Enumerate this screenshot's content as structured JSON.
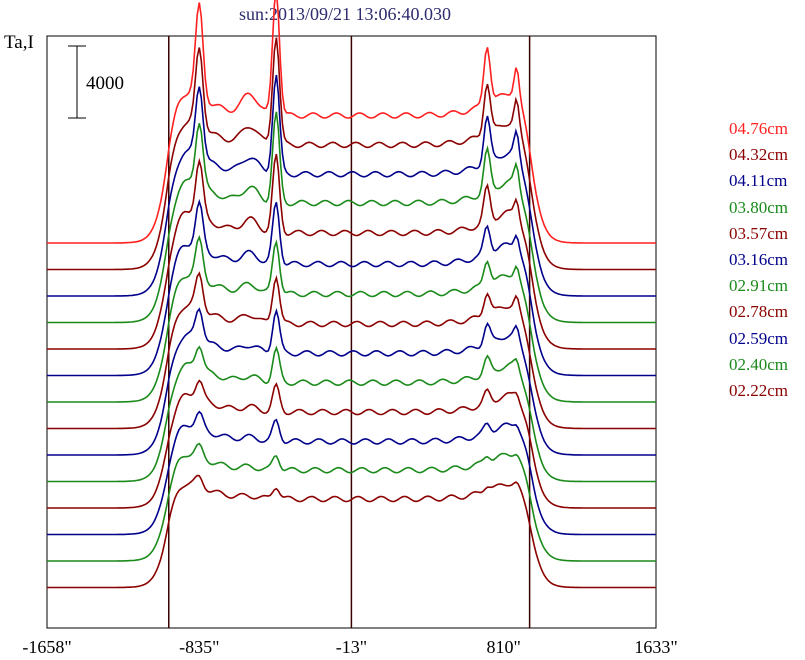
{
  "title": "sun:2013/09/21 13:06:40.030",
  "ylabel": "Ta,I",
  "scale_bar_label": "4000",
  "colors": {
    "red": "#ff2020",
    "maroon": "#8b0000",
    "navy": "#00008b",
    "green": "#1a8a1a",
    "axis": "#000000",
    "marker": "#3a0000"
  },
  "chart_data": {
    "type": "line",
    "title": "sun:2013/09/21 13:06:40.030",
    "ylabel": "Ta,I",
    "xlabel": "",
    "xlim": [
      -1658,
      1633
    ],
    "x_tick_labels": [
      "-1658\"",
      "-835\"",
      "-13\"",
      "810\"",
      "1633\""
    ],
    "x_ticks": [
      -1658,
      -835,
      -13,
      810,
      1633
    ],
    "vertical_markers": [
      -1000,
      -13,
      950
    ],
    "scale_bar": 4000,
    "grid": false,
    "legend_placement": "right",
    "series": [
      {
        "name": "04.76cm",
        "color": "#ff2020",
        "baseline_offset": 0,
        "peak_scale": 1.0,
        "rim_scale": 1.0
      },
      {
        "name": "04.32cm",
        "color": "#8b0000",
        "baseline_offset": 1,
        "peak_scale": 0.86,
        "rim_scale": 0.95
      },
      {
        "name": "04.11cm",
        "color": "#00008b",
        "baseline_offset": 2,
        "peak_scale": 0.78,
        "rim_scale": 0.9
      },
      {
        "name": "03.80cm",
        "color": "#1a8a1a",
        "baseline_offset": 3,
        "peak_scale": 0.7,
        "rim_scale": 0.86
      },
      {
        "name": "03.57cm",
        "color": "#8b0000",
        "baseline_offset": 4,
        "peak_scale": 0.6,
        "rim_scale": 0.8
      },
      {
        "name": "03.16cm",
        "color": "#00008b",
        "baseline_offset": 5,
        "peak_scale": 0.48,
        "rim_scale": 0.72
      },
      {
        "name": "02.91cm",
        "color": "#1a8a1a",
        "baseline_offset": 6,
        "peak_scale": 0.42,
        "rim_scale": 0.66
      },
      {
        "name": "02.78cm",
        "color": "#8b0000",
        "baseline_offset": 7,
        "peak_scale": 0.38,
        "rim_scale": 0.6
      },
      {
        "name": "02.59cm",
        "color": "#00008b",
        "baseline_offset": 8,
        "peak_scale": 0.34,
        "rim_scale": 0.55
      },
      {
        "name": "02.40cm",
        "color": "#1a8a1a",
        "baseline_offset": 9,
        "peak_scale": 0.26,
        "rim_scale": 0.5
      },
      {
        "name": "02.22cm",
        "color": "#8b0000",
        "baseline_offset": 10,
        "peak_scale": 0.2,
        "rim_scale": 0.45
      },
      {
        "name": "",
        "color": "#00008b",
        "baseline_offset": 11,
        "peak_scale": 0.16,
        "rim_scale": 0.4
      },
      {
        "name": "",
        "color": "#1a8a1a",
        "baseline_offset": 12,
        "peak_scale": 0.12,
        "rim_scale": 0.36
      },
      {
        "name": "",
        "color": "#8b0000",
        "baseline_offset": 13,
        "peak_scale": 0.1,
        "rim_scale": 0.32
      }
    ]
  }
}
